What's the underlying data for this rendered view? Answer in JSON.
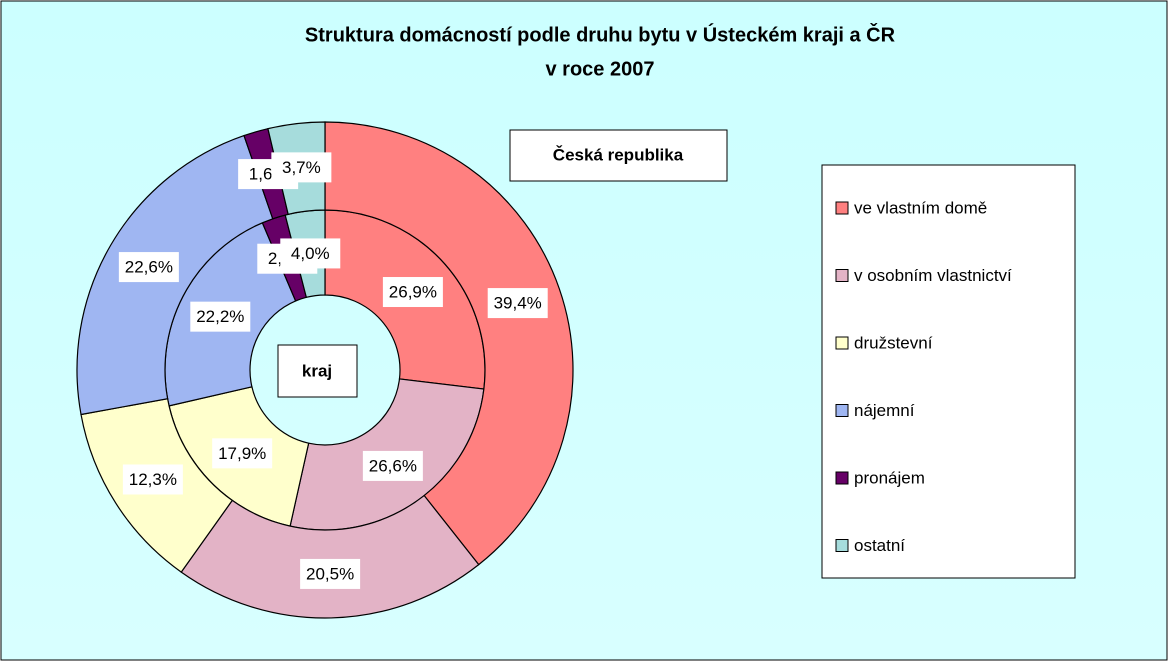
{
  "chart_data": {
    "type": "donut",
    "title_lines": [
      "Struktura domácností podle druhu bytu v Ústeckém kraji a ČR",
      "v roce 2007"
    ],
    "categories": [
      "ve vlastním domě",
      "v osobním vlastnictví",
      "družstevní",
      "nájemní",
      "pronájem",
      "ostatní"
    ],
    "colors": [
      "#ff8080",
      "#e3b3c6",
      "#ffffcc",
      "#9fb6f2",
      "#660066",
      "#a6dcdc"
    ],
    "series": [
      {
        "name": "kraj",
        "values": [
          26.9,
          26.6,
          17.9,
          22.2,
          2.4,
          4.0
        ],
        "value_labels": [
          "26,9%",
          "26,6%",
          "17,9%",
          "22,2%",
          "2,4%",
          "4,0%"
        ]
      },
      {
        "name": "Česká republika",
        "values": [
          39.4,
          20.5,
          12.3,
          22.6,
          1.6,
          3.7
        ],
        "value_labels": [
          "39,4%",
          "20,5%",
          "12,3%",
          "22,6%",
          "1,6%",
          "3,7%"
        ]
      }
    ],
    "legend": "right"
  }
}
